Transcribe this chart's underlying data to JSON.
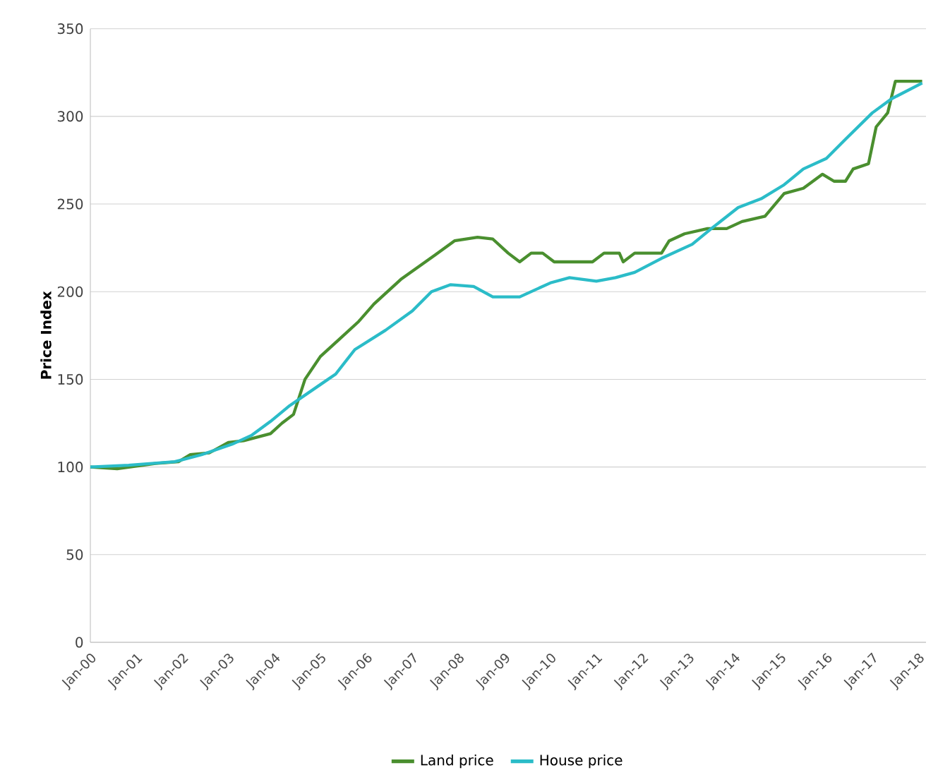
{
  "chart_data": {
    "type": "line",
    "ylabel": "Price Index",
    "xlim": [
      "2000-01",
      "2018-03"
    ],
    "ylim": [
      0,
      350
    ],
    "yticks": [
      0,
      50,
      100,
      150,
      200,
      250,
      300,
      350
    ],
    "xticks": [
      {
        "value": "2000-01",
        "label": "Jan-00"
      },
      {
        "value": "2001-01",
        "label": "Jan-01"
      },
      {
        "value": "2002-01",
        "label": "Jan-02"
      },
      {
        "value": "2003-01",
        "label": "Jan-03"
      },
      {
        "value": "2004-01",
        "label": "Jan-04"
      },
      {
        "value": "2005-01",
        "label": "Jan-05"
      },
      {
        "value": "2006-01",
        "label": "Jan-06"
      },
      {
        "value": "2007-01",
        "label": "Jan-07"
      },
      {
        "value": "2008-01",
        "label": "Jan-08"
      },
      {
        "value": "2009-01",
        "label": "Jan-09"
      },
      {
        "value": "2010-01",
        "label": "Jan-10"
      },
      {
        "value": "2011-01",
        "label": "Jan-11"
      },
      {
        "value": "2012-01",
        "label": "Jan-12"
      },
      {
        "value": "2013-01",
        "label": "Jan-13"
      },
      {
        "value": "2014-01",
        "label": "Jan-14"
      },
      {
        "value": "2015-01",
        "label": "Jan-15"
      },
      {
        "value": "2016-01",
        "label": "Jan-16"
      },
      {
        "value": "2017-01",
        "label": "Jan-17"
      },
      {
        "value": "2018-01",
        "label": "Jan-18"
      }
    ],
    "grid": "y",
    "legend": "bottom",
    "series": [
      {
        "name": "Land price",
        "color": "#4a8f2f",
        "x": [
          "2000-01",
          "2000-08",
          "2001-06",
          "2001-12",
          "2002-03",
          "2002-08",
          "2003-01",
          "2003-05",
          "2003-12",
          "2004-03",
          "2004-06",
          "2004-09",
          "2005-01",
          "2005-06",
          "2005-11",
          "2006-03",
          "2006-10",
          "2007-07",
          "2007-12",
          "2008-06",
          "2008-10",
          "2009-02",
          "2009-05",
          "2009-08",
          "2009-11",
          "2010-02",
          "2010-12",
          "2011-03",
          "2011-07",
          "2011-08",
          "2011-11",
          "2012-06",
          "2012-08",
          "2012-12",
          "2013-06",
          "2013-11",
          "2014-03",
          "2014-09",
          "2015-02",
          "2015-07",
          "2015-12",
          "2016-03",
          "2016-06",
          "2016-08",
          "2016-12",
          "2017-02",
          "2017-05",
          "2017-07",
          "2018-02"
        ],
        "values": [
          100,
          99,
          102,
          103,
          107,
          108,
          114,
          115,
          119,
          125,
          130,
          150,
          163,
          173,
          183,
          193,
          207,
          221,
          229,
          231,
          230,
          222,
          217,
          222,
          222,
          217,
          217,
          222,
          222,
          217,
          222,
          222,
          229,
          233,
          236,
          236,
          240,
          243,
          256,
          259,
          267,
          263,
          263,
          270,
          273,
          294,
          302,
          320,
          320
        ]
      },
      {
        "name": "House price",
        "color": "#2bbcc8",
        "x": [
          "2000-01",
          "2000-11",
          "2001-11",
          "2002-06",
          "2003-02",
          "2003-07",
          "2003-12",
          "2004-05",
          "2005-01",
          "2005-05",
          "2005-10",
          "2006-06",
          "2007-01",
          "2007-06",
          "2007-11",
          "2008-05",
          "2008-10",
          "2009-05",
          "2010-01",
          "2010-06",
          "2011-01",
          "2011-06",
          "2011-11",
          "2012-06",
          "2013-02",
          "2013-07",
          "2014-02",
          "2014-08",
          "2015-02",
          "2015-07",
          "2016-01",
          "2016-06",
          "2017-01",
          "2017-06",
          "2018-02"
        ],
        "values": [
          100,
          101,
          103,
          107,
          113,
          118,
          126,
          135,
          147,
          153,
          167,
          178,
          189,
          200,
          204,
          203,
          197,
          197,
          205,
          208,
          206,
          208,
          211,
          219,
          227,
          236,
          248,
          253,
          261,
          270,
          276,
          287,
          302,
          310,
          319
        ]
      }
    ]
  }
}
